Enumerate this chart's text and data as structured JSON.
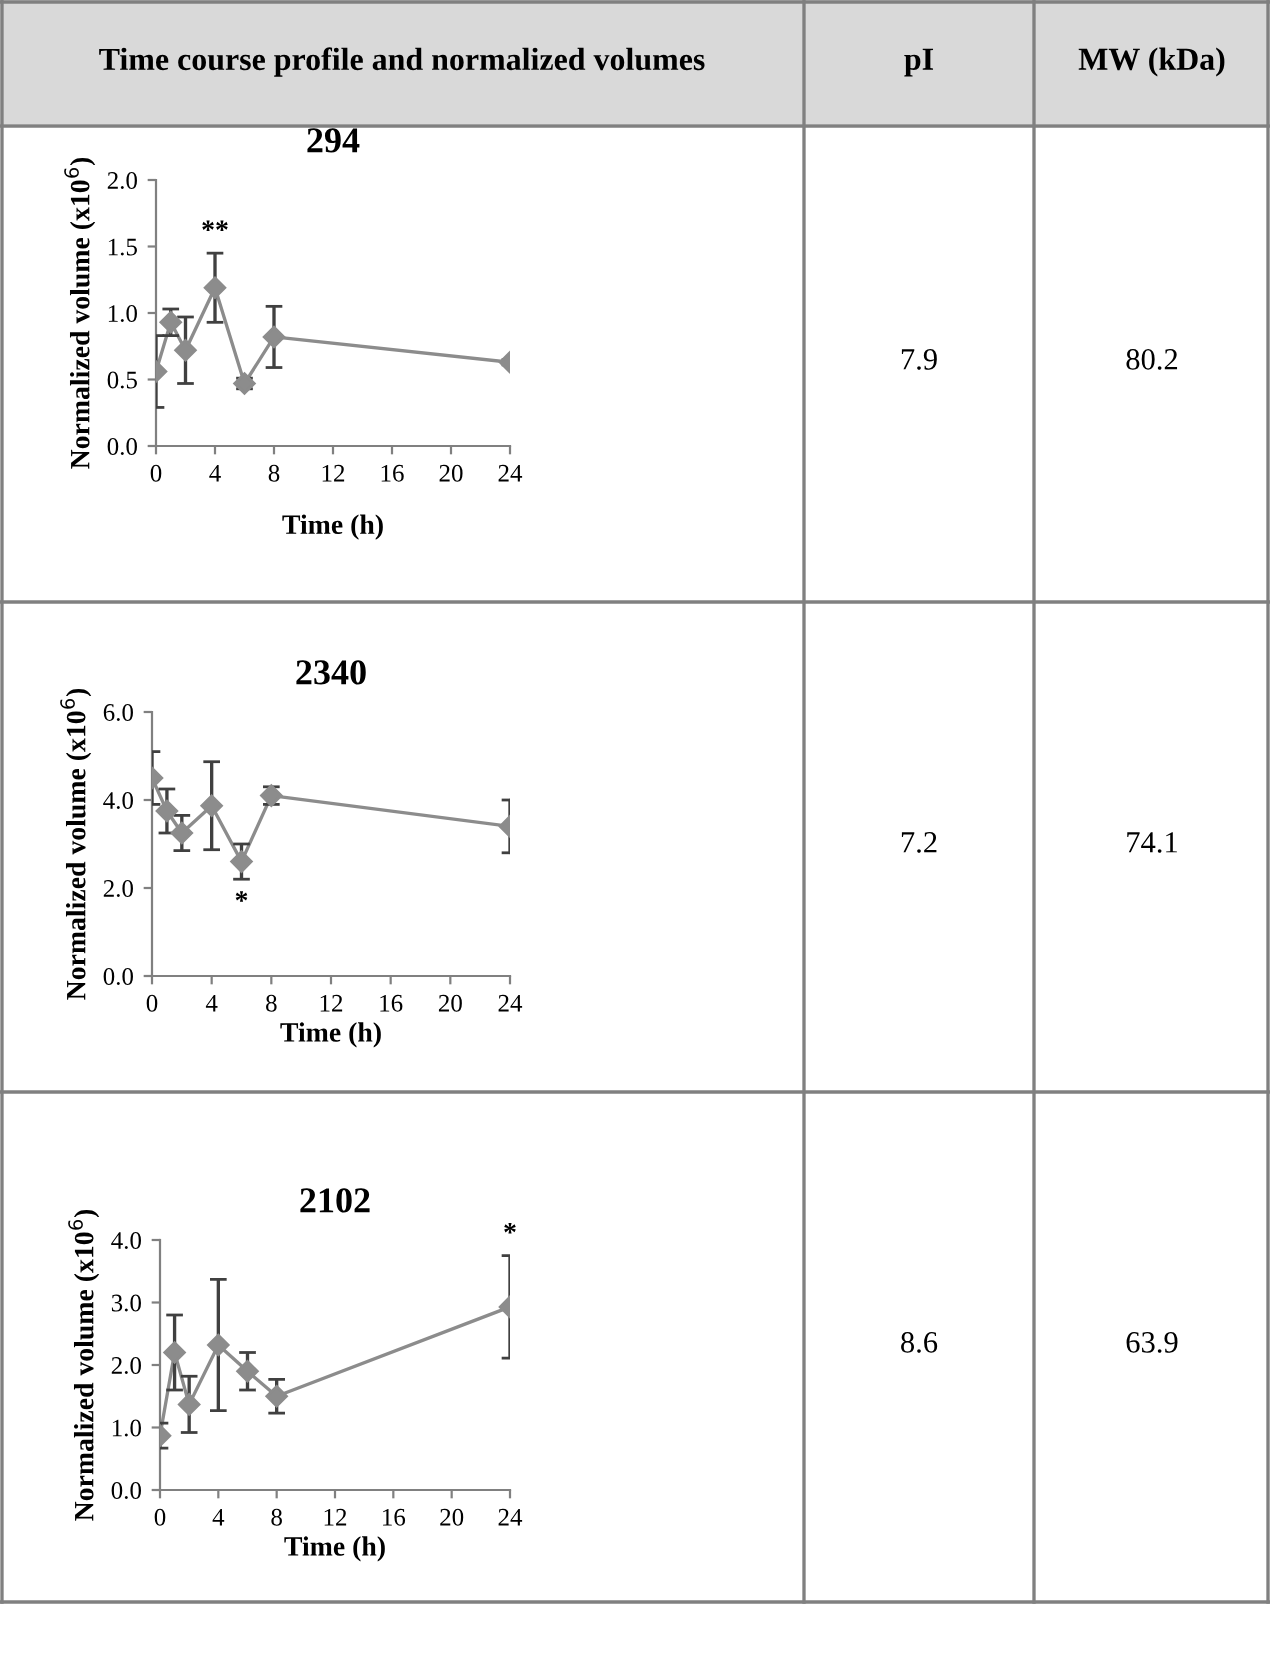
{
  "chart_data": [
    {
      "type": "line",
      "title": "294",
      "xlabel": "Time (h)",
      "ylabel": "Normalized volume (x10$^{6}$)",
      "x": [
        0,
        1,
        2,
        4,
        6,
        8,
        24
      ],
      "series": [
        {
          "color": "#8c8c8c",
          "values": [
            0.56,
            0.93,
            0.72,
            1.19,
            0.47,
            0.82,
            0.63
          ],
          "errors": [
            0.27,
            0.1,
            0.25,
            0.26,
            0.04,
            0.23,
            0.02
          ]
        }
      ],
      "xlim": [
        0,
        24
      ],
      "xticks": [
        0,
        4,
        8,
        12,
        16,
        20,
        24
      ],
      "ylim": [
        0,
        2
      ],
      "yticks": [
        {
          "value": 0,
          "label": "0.0"
        },
        {
          "value": 0.5,
          "label": "0.5"
        },
        {
          "value": 1,
          "label": "1.0"
        },
        {
          "value": 1.5,
          "label": "1.5"
        },
        {
          "value": 2,
          "label": "2.0"
        }
      ],
      "marker": "diamond",
      "grid": false,
      "legend": false,
      "annotations": [
        {
          "text": "**",
          "x": 4,
          "y": 1.45
        }
      ]
    },
    {
      "type": "line",
      "title": "2340",
      "xlabel": "Time (h)",
      "ylabel": "Normalized volume (x10$^{6}$)",
      "x": [
        0,
        1,
        2,
        4,
        6,
        8,
        24
      ],
      "series": [
        {
          "color": "#8c8c8c",
          "values": [
            4.5,
            3.75,
            3.25,
            3.87,
            2.6,
            4.1,
            3.4
          ],
          "errors": [
            0.6,
            0.5,
            0.4,
            1.0,
            0.4,
            0.2,
            0.6
          ]
        }
      ],
      "xlim": [
        0,
        24
      ],
      "xticks": [
        0,
        4,
        8,
        12,
        16,
        20,
        24
      ],
      "ylim": [
        0,
        6
      ],
      "yticks": [
        {
          "value": 0,
          "label": "0.0"
        },
        {
          "value": 2,
          "label": "2.0"
        },
        {
          "value": 4,
          "label": "4.0"
        },
        {
          "value": 6,
          "label": "6.0"
        }
      ],
      "marker": "diamond",
      "grid": false,
      "legend": false,
      "annotations": [
        {
          "text": "*",
          "x": 6,
          "y": 2.2
        }
      ]
    },
    {
      "type": "line",
      "title": "2102",
      "xlabel": "Time (h)",
      "ylabel": "Normalized volume (x10$^{6}$)",
      "x": [
        0,
        1,
        2,
        4,
        6,
        8,
        24
      ],
      "series": [
        {
          "color": "#8c8c8c",
          "values": [
            0.87,
            2.2,
            1.37,
            2.32,
            1.9,
            1.5,
            2.93
          ],
          "errors": [
            0.2,
            0.6,
            0.45,
            1.05,
            0.3,
            0.27,
            0.82
          ]
        }
      ],
      "xlim": [
        0,
        24
      ],
      "xticks": [
        0,
        4,
        8,
        12,
        16,
        20,
        24
      ],
      "ylim": [
        0,
        4
      ],
      "yticks": [
        {
          "value": 0,
          "label": "0.0"
        },
        {
          "value": 1,
          "label": "1.0"
        },
        {
          "value": 2,
          "label": "2.0"
        },
        {
          "value": 3,
          "label": "3.0"
        },
        {
          "value": 4,
          "label": "4.0"
        }
      ],
      "marker": "diamond",
      "grid": false,
      "legend": false,
      "annotations": [
        {
          "text": "*",
          "x": 24,
          "y": 3.75
        }
      ]
    },
    {
      "type": "other",
      "annotations": [
        "Time course profile and normalized volumes",
        "pI",
        "MW (kDa)",
        "7.9",
        "80.2",
        "7.2",
        "74.1",
        "8.6",
        "63.9"
      ]
    }
  ]
}
